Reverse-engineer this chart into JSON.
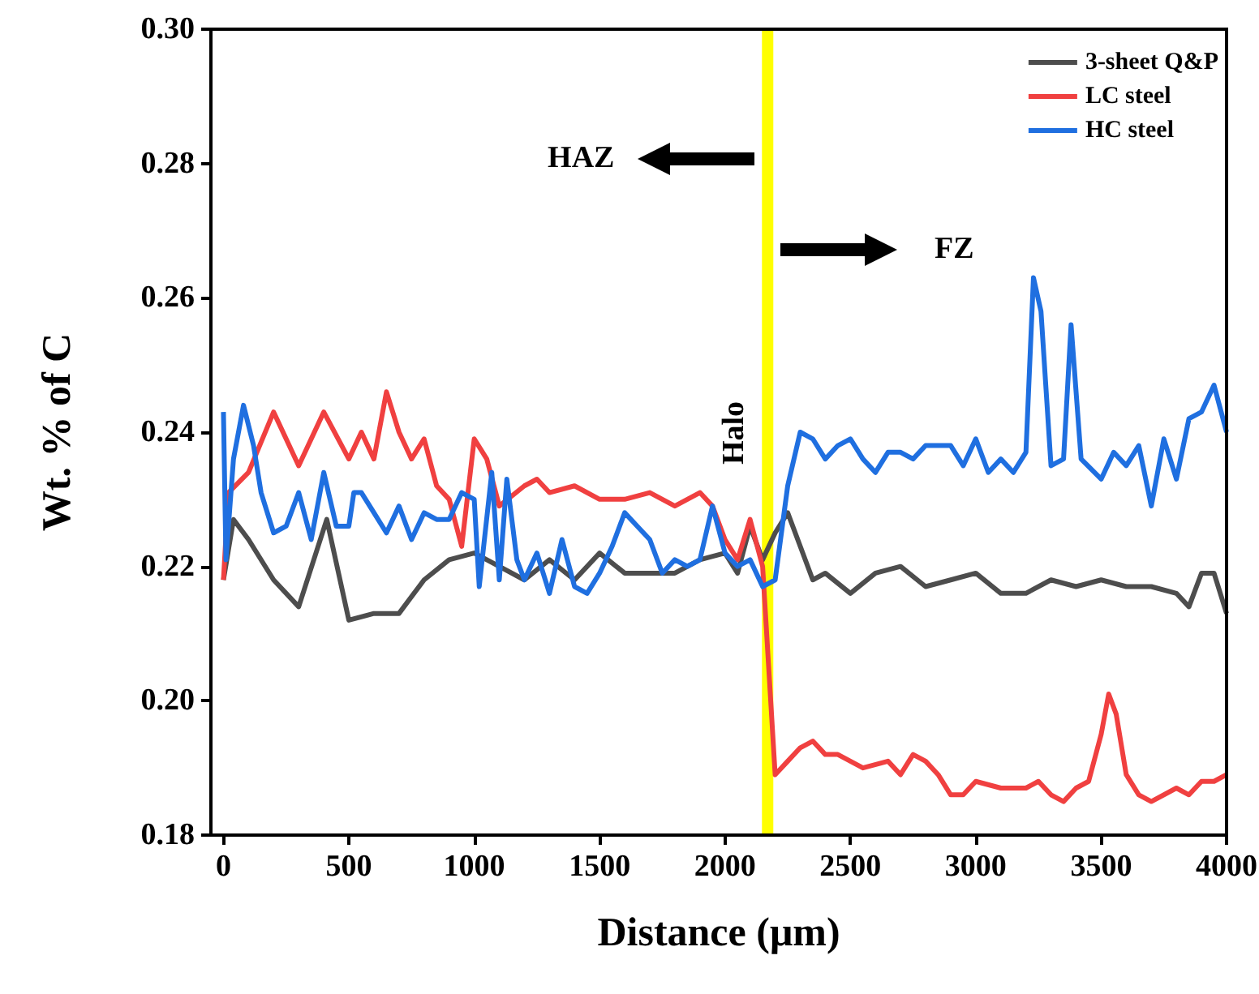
{
  "chart_data": {
    "type": "line",
    "xlabel": "Distance (μm)",
    "ylabel": "Wt. % of C",
    "xlim": [
      -50,
      4000
    ],
    "xticks": [
      0,
      500,
      1000,
      1500,
      2000,
      2500,
      3000,
      3500,
      4000
    ],
    "ylim": [
      0.18,
      0.3
    ],
    "yticks": [
      0.18,
      {
        "value": 0.2,
        "label": "0.20"
      },
      0.22,
      0.24,
      0.26,
      0.28,
      {
        "value": 0.3,
        "label": "0.30"
      }
    ],
    "grid": false,
    "legend": "top right",
    "marker": "none",
    "line_style": "solid",
    "ref_lines": [
      {
        "axis": "x",
        "value": 2170,
        "label": "Halo",
        "color": "#ffff00"
      }
    ],
    "annotations": [
      "HAZ",
      "FZ"
    ],
    "series": [
      {
        "name": "3-sheet Q&P",
        "color": "#4d4d4d",
        "x": [
          0,
          40,
          100,
          200,
          300,
          412,
          500,
          600,
          700,
          800,
          900,
          1000,
          1100,
          1200,
          1300,
          1400,
          1500,
          1600,
          1700,
          1800,
          1900,
          2000,
          2050,
          2100,
          2150,
          2200,
          2250,
          2300,
          2350,
          2400,
          2500,
          2600,
          2700,
          2800,
          2900,
          3000,
          3100,
          3200,
          3300,
          3400,
          3500,
          3600,
          3700,
          3800,
          3850,
          3900,
          3950,
          4000
        ],
        "values": [
          0.218,
          0.227,
          0.224,
          0.218,
          0.214,
          0.227,
          0.212,
          0.213,
          0.213,
          0.218,
          0.221,
          0.222,
          0.22,
          0.218,
          0.221,
          0.218,
          0.222,
          0.219,
          0.219,
          0.219,
          0.221,
          0.222,
          0.219,
          0.226,
          0.221,
          0.225,
          0.228,
          0.223,
          0.218,
          0.219,
          0.216,
          0.219,
          0.22,
          0.217,
          0.218,
          0.219,
          0.216,
          0.216,
          0.218,
          0.217,
          0.218,
          0.217,
          0.217,
          0.216,
          0.214,
          0.219,
          0.219,
          0.213
        ]
      },
      {
        "name": "LC steel",
        "color": "#f04040",
        "x": [
          0,
          20,
          100,
          200,
          300,
          400,
          500,
          550,
          600,
          650,
          700,
          750,
          800,
          850,
          900,
          950,
          1000,
          1050,
          1100,
          1200,
          1250,
          1300,
          1400,
          1500,
          1600,
          1700,
          1800,
          1900,
          1950,
          2000,
          2050,
          2100,
          2150,
          2200,
          2250,
          2300,
          2350,
          2400,
          2450,
          2500,
          2550,
          2650,
          2700,
          2750,
          2800,
          2850,
          2900,
          2950,
          3000,
          3100,
          3200,
          3250,
          3300,
          3350,
          3400,
          3450,
          3500,
          3530,
          3560,
          3600,
          3650,
          3700,
          3800,
          3850,
          3900,
          3950,
          4000
        ],
        "values": [
          0.218,
          0.231,
          0.234,
          0.243,
          0.235,
          0.243,
          0.236,
          0.24,
          0.236,
          0.246,
          0.24,
          0.236,
          0.239,
          0.232,
          0.23,
          0.223,
          0.239,
          0.236,
          0.229,
          0.232,
          0.233,
          0.231,
          0.232,
          0.23,
          0.23,
          0.231,
          0.229,
          0.231,
          0.229,
          0.224,
          0.221,
          0.227,
          0.22,
          0.189,
          0.191,
          0.193,
          0.194,
          0.192,
          0.192,
          0.191,
          0.19,
          0.191,
          0.189,
          0.192,
          0.191,
          0.189,
          0.186,
          0.186,
          0.188,
          0.187,
          0.187,
          0.188,
          0.186,
          0.185,
          0.187,
          0.188,
          0.195,
          0.201,
          0.198,
          0.189,
          0.186,
          0.185,
          0.187,
          0.186,
          0.188,
          0.188,
          0.189
        ]
      },
      {
        "name": "HC steel",
        "color": "#1f6fe0",
        "x": [
          0,
          10,
          40,
          80,
          120,
          150,
          200,
          250,
          300,
          350,
          400,
          450,
          500,
          520,
          550,
          600,
          650,
          700,
          750,
          800,
          850,
          900,
          950,
          1000,
          1020,
          1070,
          1100,
          1130,
          1170,
          1200,
          1250,
          1300,
          1350,
          1400,
          1450,
          1500,
          1550,
          1600,
          1650,
          1700,
          1750,
          1800,
          1850,
          1900,
          1950,
          2000,
          2050,
          2100,
          2150,
          2200,
          2250,
          2300,
          2350,
          2400,
          2450,
          2500,
          2550,
          2600,
          2650,
          2700,
          2750,
          2800,
          2900,
          2950,
          3000,
          3050,
          3100,
          3150,
          3200,
          3230,
          3260,
          3300,
          3350,
          3380,
          3420,
          3500,
          3550,
          3600,
          3650,
          3700,
          3750,
          3800,
          3850,
          3900,
          3950,
          4000
        ],
        "values": [
          0.243,
          0.221,
          0.236,
          0.244,
          0.238,
          0.231,
          0.225,
          0.226,
          0.231,
          0.224,
          0.234,
          0.226,
          0.226,
          0.231,
          0.231,
          0.228,
          0.225,
          0.229,
          0.224,
          0.228,
          0.227,
          0.227,
          0.231,
          0.23,
          0.217,
          0.234,
          0.218,
          0.233,
          0.221,
          0.218,
          0.222,
          0.216,
          0.224,
          0.217,
          0.216,
          0.219,
          0.223,
          0.228,
          0.226,
          0.224,
          0.219,
          0.221,
          0.22,
          0.221,
          0.229,
          0.222,
          0.22,
          0.221,
          0.217,
          0.218,
          0.232,
          0.24,
          0.239,
          0.236,
          0.238,
          0.239,
          0.236,
          0.234,
          0.237,
          0.237,
          0.236,
          0.238,
          0.238,
          0.235,
          0.239,
          0.234,
          0.236,
          0.234,
          0.237,
          0.263,
          0.258,
          0.235,
          0.236,
          0.256,
          0.236,
          0.233,
          0.237,
          0.235,
          0.238,
          0.229,
          0.239,
          0.233,
          0.242,
          0.243,
          0.247,
          0.24
        ]
      }
    ]
  }
}
